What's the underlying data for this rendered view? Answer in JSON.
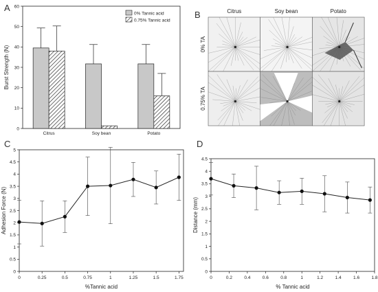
{
  "panels": {
    "a": {
      "label": "A"
    },
    "b": {
      "label": "B"
    },
    "c": {
      "label": "C"
    },
    "d": {
      "label": "D"
    }
  },
  "chart_data": [
    {
      "panel": "A",
      "type": "bar",
      "categories": [
        "Citrus",
        "Soy bean",
        "Potato"
      ],
      "series": [
        {
          "name": "0% Tannic acid",
          "values": [
            39.5,
            31.7,
            31.7
          ],
          "errors": [
            9.8,
            9.5,
            9.5
          ],
          "color": "#c8c8c8",
          "pattern": "solid"
        },
        {
          "name": "0.75% Tannic acid",
          "values": [
            38.0,
            1.3,
            16.0
          ],
          "errors": [
            12.3,
            0,
            11.0
          ],
          "color": "#ffffff",
          "pattern": "hatch"
        }
      ],
      "xlabel": "",
      "ylabel": "Burst Strength (N)",
      "ylim": [
        0,
        60
      ],
      "yticks": [
        0,
        10,
        20,
        30,
        40,
        50,
        60
      ],
      "legend": "top-right"
    },
    {
      "panel": "B",
      "type": "image_grid",
      "columns": [
        "Citrus",
        "Soy bean",
        "Potato"
      ],
      "rows": [
        "0% TA",
        "0.75% TA"
      ]
    },
    {
      "panel": "C",
      "type": "line",
      "x": [
        0,
        0.25,
        0.5,
        0.75,
        1.0,
        1.25,
        1.5,
        1.75
      ],
      "y": [
        2.03,
        1.97,
        2.25,
        3.5,
        3.53,
        3.78,
        3.45,
        3.87
      ],
      "errors": [
        0.9,
        0.93,
        0.65,
        1.2,
        1.57,
        0.7,
        0.68,
        0.95
      ],
      "xlabel": "%Tannic acid",
      "ylabel": "Adhesion Force (N)",
      "xlim": [
        0,
        1.8
      ],
      "ylim": [
        0,
        5
      ],
      "xticks": [
        "0",
        "0.25",
        "0.5",
        "0.75",
        "1",
        "1.25",
        "1.5",
        "1.75"
      ],
      "yticks": [
        "0",
        "0.5",
        "1",
        "1.5",
        "2",
        "2.5",
        "3",
        "3.5",
        "4",
        "4.5",
        "5"
      ]
    },
    {
      "panel": "D",
      "type": "line",
      "x": [
        0,
        0.25,
        0.5,
        0.75,
        1.0,
        1.25,
        1.5,
        1.75
      ],
      "y": [
        3.7,
        3.42,
        3.33,
        3.15,
        3.2,
        3.1,
        2.95,
        2.85
      ],
      "errors": [
        0.65,
        0.47,
        0.87,
        0.47,
        0.52,
        0.72,
        0.62,
        0.52
      ],
      "xlabel": "% Tannic acid",
      "ylabel": "Distance (mm)",
      "xlim": [
        0,
        1.8
      ],
      "ylim": [
        0,
        4.5
      ],
      "xticks": [
        "0",
        "0.2",
        "0.4",
        "0.6",
        "0.8",
        "1",
        "1.2",
        "1.4",
        "1.6",
        "1.8"
      ],
      "yticks": [
        "0",
        "0.5",
        "1",
        "1.5",
        "2",
        "2.5",
        "3",
        "3.5",
        "4",
        "4.5"
      ]
    }
  ]
}
